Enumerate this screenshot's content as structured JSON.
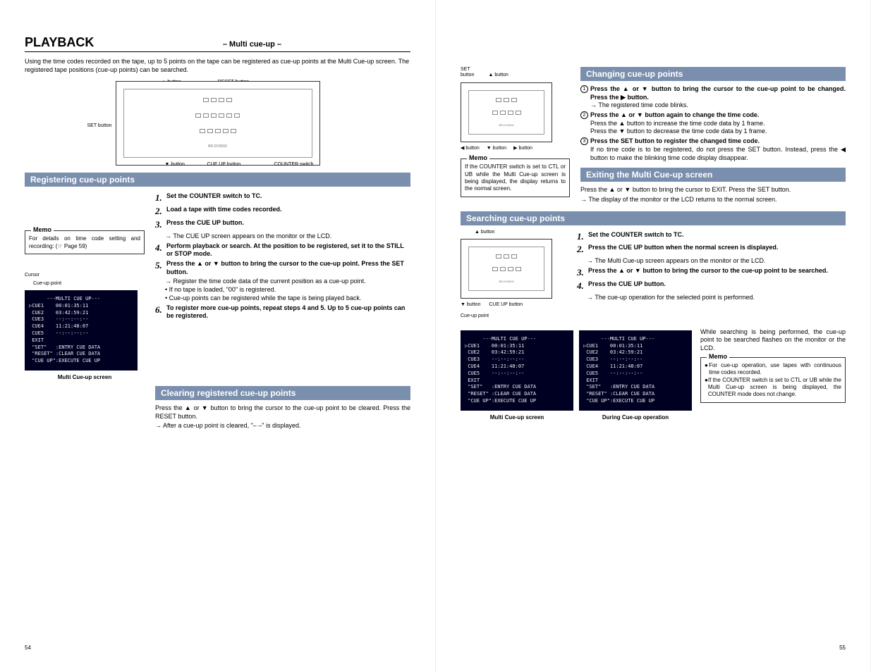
{
  "header": {
    "title": "PLAYBACK",
    "subtitle": "– Multi cue-up –"
  },
  "intro": "Using the time codes recorded on the tape, up to 5 points on the tape can be registered as cue-up points at the Multi Cue-up screen. The registered tape positions (cue-up points) can be searched.",
  "diagram_labels": {
    "up_btn": "▲ button",
    "down_btn": "▼ button",
    "left_btn": "◀ button",
    "right_btn": "▶ button",
    "set_btn": "SET button",
    "reset_btn": "RESET button",
    "cueup_btn": "CUE UP button",
    "counter_sw": "COUNTER switch",
    "set": "SET",
    "button": "button"
  },
  "sections": {
    "registering": "Registering cue-up points",
    "clearing": "Clearing registered cue-up points",
    "changing": "Changing cue-up points",
    "exiting": "Exiting the Multi Cue-up screen",
    "searching": "Searching cue-up points"
  },
  "memo_left": {
    "title": "Memo",
    "body": "For details on time code setting and recording: (☞ Page 59)"
  },
  "reg_steps": [
    {
      "n": "1.",
      "b": "Set the COUNTER switch to TC."
    },
    {
      "n": "2.",
      "b": "Load a tape with time codes recorded."
    },
    {
      "n": "3.",
      "b": "Press the CUE UP button.",
      "sub_arrow": "The CUE UP screen appears on the monitor or the LCD."
    },
    {
      "n": "4.",
      "b": "Perform playback or search. At the position to be registered, set it to the STILL or STOP mode."
    },
    {
      "n": "5.",
      "b": "Press the ▲ or ▼ button to bring the cursor to the cue-up point. Press the SET button.",
      "sub_arrow": "Register the time code data of the current position as a cue-up point.",
      "bullets": [
        "If no tape is loaded, \"00\" is registered.",
        "Cue-up points can be registered while the tape is being played back."
      ]
    },
    {
      "n": "6.",
      "b": "To register more cue-up points, repeat steps 4 and 5. Up to 5 cue-up points can be registered."
    }
  ],
  "clearing_body1": "Press the ▲ or ▼ button to bring the cursor to the cue-up point to be cleared. Press the RESET button.",
  "clearing_body2": "→ After a cue-up point is cleared, \"– –\" is displayed.",
  "cursor_label": "Cursor",
  "cueup_label": "Cue-up point",
  "lcd1_caption": "Multi Cue-up screen",
  "lcd_data": {
    "header": "---MULTI CUE UP---",
    "rows": [
      "▷CUE1    00:01:35:11",
      " CUE2    03:42:59:21",
      " CUE3    --:--:--:--",
      " CUE4    11:21:48:07",
      " CUE5    --:--:--:--",
      " EXIT",
      " \"SET\"   :ENTRY CUE DATA",
      " \"RESET\" :CLEAR CUE DATA",
      " \"CUE UP\":EXECUTE CUE UP"
    ]
  },
  "memo_right1": {
    "title": "Memo",
    "body": "If the COUNTER switch is set to CTL or UB while the Multi Cue-up screen is being displayed, the display returns to the normal screen."
  },
  "changing_steps": [
    {
      "c": "1",
      "b": "Press the ▲ or ▼ button to bring the cursor to the cue-up point to be changed. Press the ▶ button.",
      "sub": "→ The registered time code blinks."
    },
    {
      "c": "2",
      "b": "Press the ▲ or ▼ button again to change the time code.",
      "plain": "Press the ▲ button to increase the time code data by 1 frame.\nPress the ▼ button to decrease the time code data by 1 frame."
    },
    {
      "c": "3",
      "b": "Press the SET button to register the changed time code.",
      "plain": "If no time code is to be registered, do not press the SET button. Instead, press the ◀ button to make the blinking time code display disappear."
    }
  ],
  "exiting_body1": "Press the ▲ or ▼ button to bring the cursor to EXIT. Press the SET button.",
  "exiting_body2": "→ The display of the monitor or the LCD returns to the normal screen.",
  "search_steps": [
    {
      "n": "1.",
      "b": "Set the COUNTER switch to TC."
    },
    {
      "n": "2.",
      "b": "Press the CUE UP button when the normal screen is displayed.",
      "sub_arrow": "The Multi Cue-up screen appears on the monitor or the LCD."
    },
    {
      "n": "3.",
      "b": "Press the ▲ or ▼ button to bring the cursor to the cue-up point to be searched."
    },
    {
      "n": "4.",
      "b": "Press the CUE UP button.",
      "sub_arrow": "The cue-up operation for the selected point is performed."
    }
  ],
  "search_note": "While searching is being performed, the cue-up point to be searched flashes on the monitor or the LCD.",
  "memo_right2": {
    "title": "Memo",
    "b1": "For cue-up operation, use tapes with continuous time codes recorded.",
    "b2": "If the COUNTER switch is set to CTL or UB while the Multi Cue-up screen is being displayed, the COUNTER mode does not change."
  },
  "lcd2_caption": "Multi Cue-up screen",
  "lcd3_caption": "During Cue-up operation",
  "page_left": "54",
  "page_right": "55"
}
